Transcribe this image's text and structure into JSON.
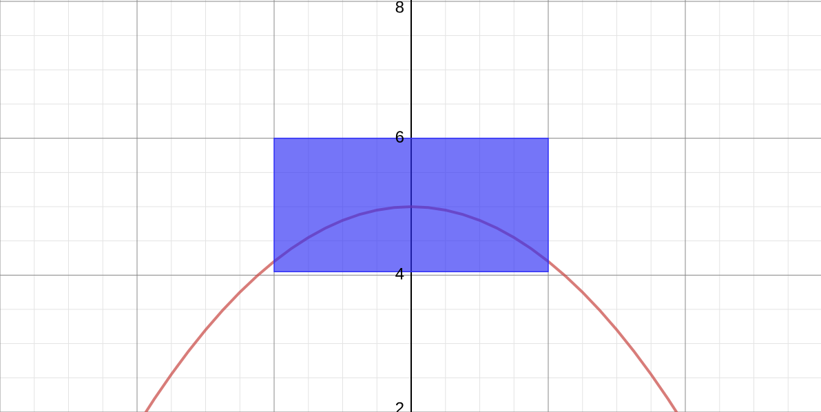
{
  "chart_data": {
    "type": "line",
    "xlim": [
      -6,
      5.98
    ],
    "ylim": [
      2,
      8.02
    ],
    "xticks": [
      -6,
      -4,
      -2,
      0,
      2,
      4
    ],
    "yticks": [
      2,
      4,
      6,
      8
    ],
    "grid": true,
    "series": [
      {
        "color": "#c74440",
        "x": [
          -4,
          -3.75,
          -3.5,
          -3.25,
          -3,
          -2.75,
          -2.5,
          -2.25,
          -2,
          -1.75,
          -1.5,
          -1.25,
          -1,
          -0.75,
          -0.5,
          -0.25,
          0,
          0.25,
          0.5,
          0.75,
          1,
          1.25,
          1.5,
          1.75,
          2,
          2.25,
          2.5,
          2.75,
          3,
          3.25,
          3.5,
          3.75,
          4
        ],
        "values": [
          1.8,
          2.1875,
          2.55,
          2.8875,
          3.2,
          3.4875,
          3.75,
          3.9875,
          4.2,
          4.3875,
          4.55,
          4.6875,
          4.8,
          4.8875,
          4.95,
          4.9875,
          5,
          4.9875,
          4.95,
          4.8875,
          4.8,
          4.6875,
          4.55,
          4.3875,
          4.2,
          3.9875,
          3.75,
          3.4875,
          3.2,
          2.8875,
          2.55,
          2.1875,
          1.8
        ]
      }
    ],
    "rectangle": {
      "x": [
        -2,
        2
      ],
      "y": [
        4.05,
        6
      ],
      "color": "#2d2df5"
    }
  }
}
